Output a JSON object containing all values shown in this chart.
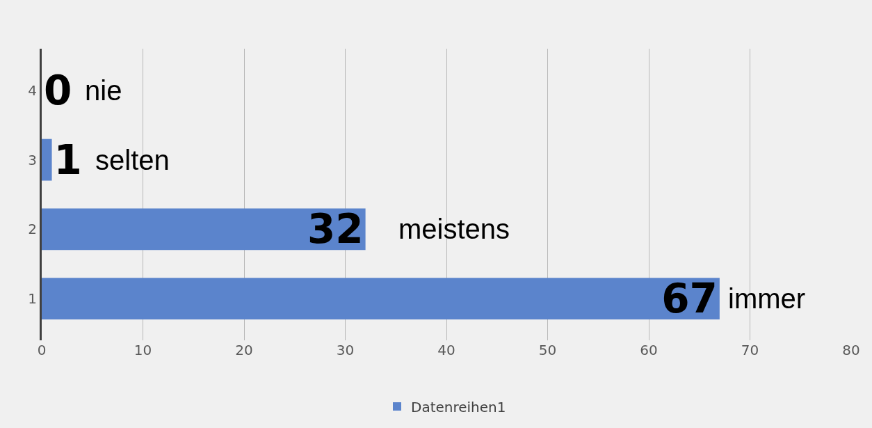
{
  "chart_data": {
    "type": "bar",
    "orientation": "horizontal",
    "categories": [
      "4",
      "3",
      "2",
      "1"
    ],
    "series": [
      {
        "name": "Datenreihen1",
        "color": "#5b84cc",
        "values": [
          0,
          1,
          32,
          67
        ]
      }
    ],
    "data_labels": true,
    "annotations": [
      {
        "text": "nie",
        "x": 0,
        "y": "4"
      },
      {
        "text": "selten",
        "x": 1,
        "y": "3"
      },
      {
        "text": "meistens",
        "x": 32,
        "y": "2"
      },
      {
        "text": "immer",
        "x": 67,
        "y": "1"
      }
    ],
    "xlim": [
      0,
      80
    ],
    "xticks": [
      0,
      10,
      20,
      30,
      40,
      50,
      60,
      70,
      80
    ],
    "grid": "x",
    "legend": "bottom"
  }
}
